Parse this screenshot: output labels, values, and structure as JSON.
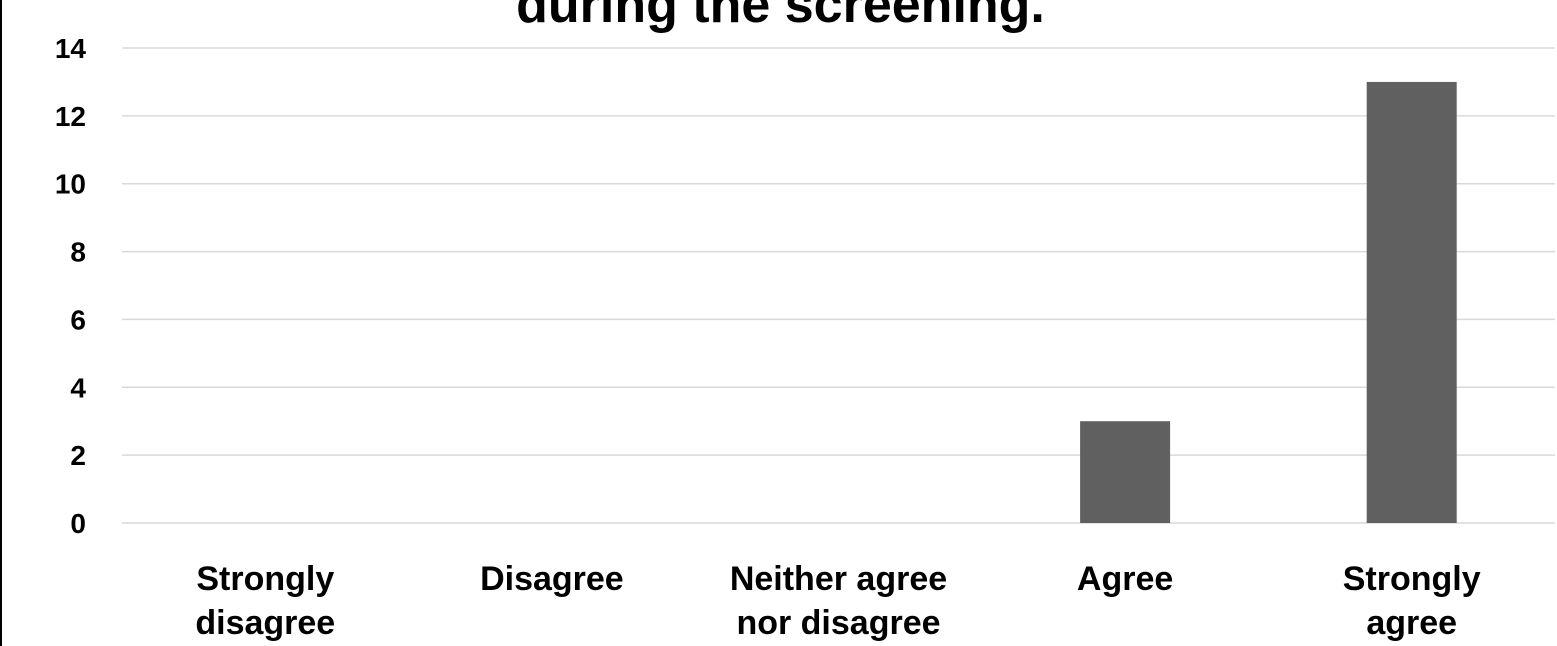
{
  "chart_data": {
    "type": "bar",
    "title": "during the screening.",
    "xlabel": "",
    "ylabel": "",
    "categories": [
      [
        "Strongly",
        "disagree"
      ],
      [
        "Disagree"
      ],
      [
        "Neither agree",
        "nor disagree"
      ],
      [
        "Agree"
      ],
      [
        "Strongly",
        "agree"
      ]
    ],
    "values": [
      0,
      0,
      0,
      3,
      13
    ],
    "ylim": [
      0,
      14
    ],
    "yticks": [
      0,
      2,
      4,
      6,
      8,
      10,
      12,
      14
    ],
    "grid": true,
    "legend": "none",
    "bar_color": "#606060",
    "grid_color": "#d9d9d9"
  }
}
